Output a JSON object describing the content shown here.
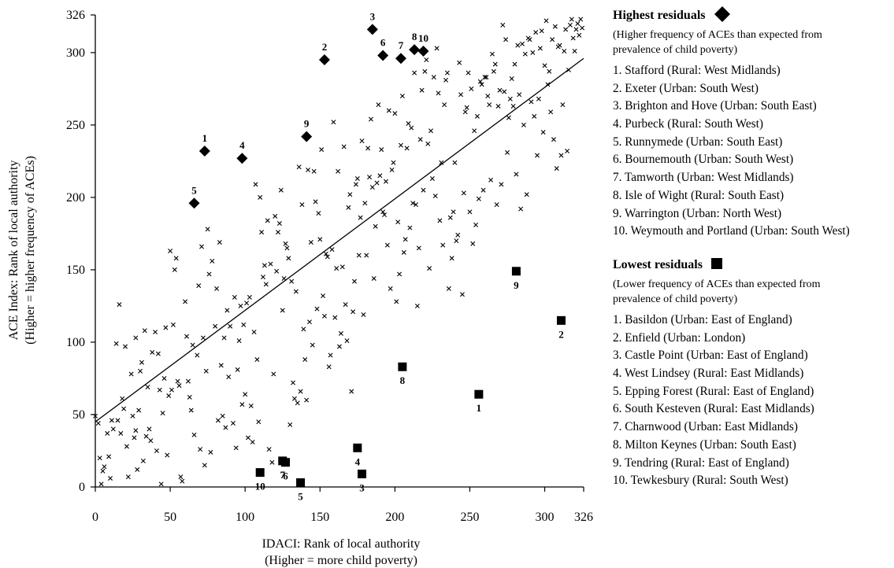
{
  "chart_data": {
    "type": "scatter",
    "xlabel_lines": [
      "IDACI: Rank of local authority",
      "(Higher = more child poverty)"
    ],
    "ylabel_lines": [
      "ACE Index: Rank of local authority",
      "(Higher = higher frequency of ACEs)"
    ],
    "xlim": [
      0,
      326
    ],
    "ylim": [
      0,
      326
    ],
    "xticks": [
      0,
      50,
      100,
      150,
      200,
      250,
      300,
      326
    ],
    "yticks": [
      0,
      50,
      100,
      150,
      200,
      250,
      300,
      326
    ],
    "trendline": {
      "x": [
        0,
        326
      ],
      "y": [
        45,
        296
      ]
    },
    "highest_residuals": {
      "title": "Highest residuals",
      "description": "(Higher frequency of ACEs than expected from prevalence of child poverty)",
      "marker": "diamond",
      "points": [
        {
          "label": "1",
          "name": "1. Stafford (Rural: West Midlands)",
          "x": 73,
          "y": 232
        },
        {
          "label": "2",
          "name": "2. Exeter (Urban: South West)",
          "x": 153,
          "y": 295
        },
        {
          "label": "3",
          "name": "3. Brighton and Hove (Urban: South East)",
          "x": 185,
          "y": 316
        },
        {
          "label": "4",
          "name": "4. Purbeck (Rural: South West)",
          "x": 98,
          "y": 227
        },
        {
          "label": "5",
          "name": "5. Runnymede (Urban: South East)",
          "x": 66,
          "y": 196
        },
        {
          "label": "6",
          "name": "6. Bournemouth (Urban: South West)",
          "x": 192,
          "y": 298
        },
        {
          "label": "7",
          "name": "7. Tamworth (Urban: West Midlands)",
          "x": 204,
          "y": 296
        },
        {
          "label": "8",
          "name": "8. Isle of Wight (Rural: South East)",
          "x": 213,
          "y": 302
        },
        {
          "label": "9",
          "name": "9. Warrington (Urban: North West)",
          "x": 141,
          "y": 242
        },
        {
          "label": "10",
          "name": "10. Weymouth and Portland (Urban: South West)",
          "x": 219,
          "y": 301
        }
      ]
    },
    "lowest_residuals": {
      "title": "Lowest residuals",
      "description": "(Lower frequency of ACEs than expected from prevalence of child poverty)",
      "marker": "square",
      "points": [
        {
          "label": "1",
          "name": "1. Basildon (Urban: East of England)",
          "x": 256,
          "y": 64
        },
        {
          "label": "2",
          "name": "2. Enfield (Urban: London)",
          "x": 311,
          "y": 115
        },
        {
          "label": "3",
          "name": "3. Castle Point (Urban: East of England)",
          "x": 178,
          "y": 9
        },
        {
          "label": "4",
          "name": "4. West Lindsey (Rural: East Midlands)",
          "x": 175,
          "y": 27
        },
        {
          "label": "5",
          "name": "5. Epping Forest (Rural: East of England)",
          "x": 137,
          "y": 3
        },
        {
          "label": "6",
          "name": "6. South Kesteven (Rural: East Midlands)",
          "x": 127,
          "y": 17
        },
        {
          "label": "7",
          "name": "7. Charnwood (Urban: East Midlands)",
          "x": 125,
          "y": 18
        },
        {
          "label": "8",
          "name": "8. Milton Keynes (Urban: South East)",
          "x": 205,
          "y": 83
        },
        {
          "label": "9",
          "name": "9. Tendring (Rural: East of England)",
          "x": 281,
          "y": 149
        },
        {
          "label": "10",
          "name": "10. Tewkesbury (Rural: South West)",
          "x": 110,
          "y": 10
        }
      ]
    },
    "other_points": [
      [
        0,
        49
      ],
      [
        2,
        44
      ],
      [
        3,
        20
      ],
      [
        4,
        2
      ],
      [
        5,
        11
      ],
      [
        6,
        14
      ],
      [
        8,
        37
      ],
      [
        9,
        21
      ],
      [
        10,
        6
      ],
      [
        11,
        46
      ],
      [
        12,
        40
      ],
      [
        14,
        99
      ],
      [
        15,
        46
      ],
      [
        16,
        126
      ],
      [
        17,
        37
      ],
      [
        18,
        61
      ],
      [
        19,
        54
      ],
      [
        20,
        97
      ],
      [
        21,
        28
      ],
      [
        22,
        7
      ],
      [
        24,
        78
      ],
      [
        25,
        49
      ],
      [
        26,
        34
      ],
      [
        27,
        103
      ],
      [
        27,
        39
      ],
      [
        28,
        12
      ],
      [
        29,
        53
      ],
      [
        30,
        80
      ],
      [
        31,
        86
      ],
      [
        32,
        18
      ],
      [
        33,
        108
      ],
      [
        34,
        35
      ],
      [
        35,
        69
      ],
      [
        36,
        40
      ],
      [
        37,
        32
      ],
      [
        38,
        93
      ],
      [
        40,
        107
      ],
      [
        41,
        25
      ],
      [
        42,
        92
      ],
      [
        43,
        67
      ],
      [
        44,
        2
      ],
      [
        45,
        51
      ],
      [
        46,
        75
      ],
      [
        47,
        110
      ],
      [
        48,
        22
      ],
      [
        49,
        63
      ],
      [
        50,
        163
      ],
      [
        51,
        67
      ],
      [
        52,
        112
      ],
      [
        53,
        150
      ],
      [
        54,
        158
      ],
      [
        55,
        73
      ],
      [
        56,
        70
      ],
      [
        57,
        7
      ],
      [
        58,
        4
      ],
      [
        60,
        128
      ],
      [
        61,
        104
      ],
      [
        62,
        73
      ],
      [
        63,
        62
      ],
      [
        64,
        53
      ],
      [
        65,
        98
      ],
      [
        66,
        36
      ],
      [
        68,
        91
      ],
      [
        69,
        139
      ],
      [
        70,
        26
      ],
      [
        71,
        166
      ],
      [
        72,
        103
      ],
      [
        73,
        15
      ],
      [
        74,
        80
      ],
      [
        75,
        178
      ],
      [
        76,
        147
      ],
      [
        77,
        24
      ],
      [
        78,
        156
      ],
      [
        80,
        111
      ],
      [
        81,
        137
      ],
      [
        82,
        46
      ],
      [
        83,
        169
      ],
      [
        84,
        84
      ],
      [
        85,
        49
      ],
      [
        86,
        103
      ],
      [
        87,
        41
      ],
      [
        88,
        122
      ],
      [
        89,
        76
      ],
      [
        90,
        111
      ],
      [
        92,
        44
      ],
      [
        93,
        131
      ],
      [
        94,
        27
      ],
      [
        95,
        81
      ],
      [
        96,
        101
      ],
      [
        97,
        125
      ],
      [
        98,
        57
      ],
      [
        99,
        112
      ],
      [
        100,
        64
      ],
      [
        101,
        127
      ],
      [
        102,
        34
      ],
      [
        103,
        131
      ],
      [
        104,
        56
      ],
      [
        105,
        31
      ],
      [
        106,
        107
      ],
      [
        107,
        209
      ],
      [
        108,
        88
      ],
      [
        109,
        45
      ],
      [
        110,
        200
      ],
      [
        111,
        176
      ],
      [
        112,
        145
      ],
      [
        113,
        153
      ],
      [
        114,
        140
      ],
      [
        115,
        184
      ],
      [
        116,
        26
      ],
      [
        117,
        154
      ],
      [
        118,
        17
      ],
      [
        119,
        78
      ],
      [
        120,
        187
      ],
      [
        121,
        149
      ],
      [
        122,
        176
      ],
      [
        123,
        182
      ],
      [
        124,
        205
      ],
      [
        125,
        122
      ],
      [
        126,
        144
      ],
      [
        127,
        168
      ],
      [
        128,
        165
      ],
      [
        129,
        158
      ],
      [
        130,
        43
      ],
      [
        131,
        142
      ],
      [
        132,
        72
      ],
      [
        133,
        61
      ],
      [
        134,
        135
      ],
      [
        135,
        58
      ],
      [
        136,
        221
      ],
      [
        137,
        66
      ],
      [
        138,
        195
      ],
      [
        139,
        109
      ],
      [
        140,
        88
      ],
      [
        141,
        60
      ],
      [
        142,
        219
      ],
      [
        143,
        114
      ],
      [
        144,
        169
      ],
      [
        145,
        98
      ],
      [
        146,
        218
      ],
      [
        147,
        197
      ],
      [
        148,
        123
      ],
      [
        149,
        189
      ],
      [
        150,
        171
      ],
      [
        151,
        233
      ],
      [
        152,
        132
      ],
      [
        153,
        118
      ],
      [
        154,
        161
      ],
      [
        155,
        159
      ],
      [
        156,
        83
      ],
      [
        157,
        91
      ],
      [
        158,
        164
      ],
      [
        159,
        252
      ],
      [
        160,
        117
      ],
      [
        161,
        151
      ],
      [
        162,
        218
      ],
      [
        163,
        97
      ],
      [
        164,
        106
      ],
      [
        165,
        152
      ],
      [
        166,
        235
      ],
      [
        167,
        126
      ],
      [
        168,
        101
      ],
      [
        169,
        193
      ],
      [
        170,
        202
      ],
      [
        171,
        66
      ],
      [
        172,
        121
      ],
      [
        173,
        142
      ],
      [
        174,
        209
      ],
      [
        175,
        213
      ],
      [
        176,
        160
      ],
      [
        177,
        186
      ],
      [
        178,
        239
      ],
      [
        179,
        119
      ],
      [
        180,
        196
      ],
      [
        181,
        160
      ],
      [
        182,
        234
      ],
      [
        183,
        214
      ],
      [
        184,
        254
      ],
      [
        185,
        207
      ],
      [
        186,
        144
      ],
      [
        187,
        180
      ],
      [
        188,
        210
      ],
      [
        189,
        264
      ],
      [
        190,
        215
      ],
      [
        191,
        233
      ],
      [
        192,
        190
      ],
      [
        193,
        188
      ],
      [
        194,
        211
      ],
      [
        195,
        167
      ],
      [
        196,
        260
      ],
      [
        197,
        137
      ],
      [
        198,
        219
      ],
      [
        199,
        224
      ],
      [
        200,
        258
      ],
      [
        201,
        128
      ],
      [
        202,
        183
      ],
      [
        203,
        147
      ],
      [
        204,
        236
      ],
      [
        205,
        270
      ],
      [
        206,
        162
      ],
      [
        207,
        171
      ],
      [
        208,
        234
      ],
      [
        209,
        251
      ],
      [
        210,
        179
      ],
      [
        211,
        248
      ],
      [
        212,
        196
      ],
      [
        213,
        286
      ],
      [
        214,
        195
      ],
      [
        215,
        125
      ],
      [
        216,
        165
      ],
      [
        217,
        240
      ],
      [
        218,
        274
      ],
      [
        219,
        205
      ],
      [
        220,
        287
      ],
      [
        221,
        295
      ],
      [
        222,
        237
      ],
      [
        223,
        151
      ],
      [
        224,
        246
      ],
      [
        225,
        213
      ],
      [
        226,
        283
      ],
      [
        227,
        201
      ],
      [
        228,
        303
      ],
      [
        229,
        272
      ],
      [
        230,
        184
      ],
      [
        231,
        224
      ],
      [
        232,
        167
      ],
      [
        233,
        264
      ],
      [
        234,
        281
      ],
      [
        235,
        286
      ],
      [
        236,
        137
      ],
      [
        237,
        186
      ],
      [
        238,
        158
      ],
      [
        239,
        190
      ],
      [
        240,
        224
      ],
      [
        241,
        170
      ],
      [
        242,
        174
      ],
      [
        243,
        293
      ],
      [
        244,
        271
      ],
      [
        245,
        133
      ],
      [
        246,
        203
      ],
      [
        247,
        259
      ],
      [
        248,
        262
      ],
      [
        249,
        286
      ],
      [
        250,
        190
      ],
      [
        251,
        275
      ],
      [
        252,
        168
      ],
      [
        253,
        246
      ],
      [
        254,
        181
      ],
      [
        255,
        256
      ],
      [
        256,
        199
      ],
      [
        257,
        280
      ],
      [
        258,
        278
      ],
      [
        259,
        205
      ],
      [
        260,
        283
      ],
      [
        261,
        283
      ],
      [
        262,
        270
      ],
      [
        263,
        264
      ],
      [
        264,
        212
      ],
      [
        265,
        299
      ],
      [
        266,
        287
      ],
      [
        267,
        292
      ],
      [
        268,
        195
      ],
      [
        269,
        263
      ],
      [
        270,
        274
      ],
      [
        271,
        209
      ],
      [
        272,
        319
      ],
      [
        273,
        273
      ],
      [
        274,
        309
      ],
      [
        275,
        231
      ],
      [
        276,
        255
      ],
      [
        277,
        268
      ],
      [
        278,
        282
      ],
      [
        279,
        263
      ],
      [
        280,
        292
      ],
      [
        281,
        216
      ],
      [
        282,
        305
      ],
      [
        283,
        271
      ],
      [
        284,
        192
      ],
      [
        285,
        306
      ],
      [
        286,
        250
      ],
      [
        287,
        299
      ],
      [
        288,
        202
      ],
      [
        289,
        310
      ],
      [
        290,
        309
      ],
      [
        291,
        266
      ],
      [
        292,
        300
      ],
      [
        293,
        256
      ],
      [
        294,
        314
      ],
      [
        295,
        229
      ],
      [
        296,
        268
      ],
      [
        297,
        303
      ],
      [
        298,
        315
      ],
      [
        299,
        245
      ],
      [
        300,
        291
      ],
      [
        301,
        322
      ],
      [
        302,
        278
      ],
      [
        303,
        287
      ],
      [
        304,
        259
      ],
      [
        305,
        309
      ],
      [
        306,
        240
      ],
      [
        307,
        318
      ],
      [
        308,
        220
      ],
      [
        309,
        304
      ],
      [
        310,
        305
      ],
      [
        311,
        229
      ],
      [
        312,
        264
      ],
      [
        313,
        301
      ],
      [
        314,
        316
      ],
      [
        315,
        232
      ],
      [
        316,
        288
      ],
      [
        317,
        319
      ],
      [
        318,
        323
      ],
      [
        319,
        310
      ],
      [
        320,
        301
      ],
      [
        321,
        316
      ],
      [
        322,
        320
      ],
      [
        323,
        312
      ],
      [
        324,
        323
      ],
      [
        325,
        317
      ]
    ]
  }
}
